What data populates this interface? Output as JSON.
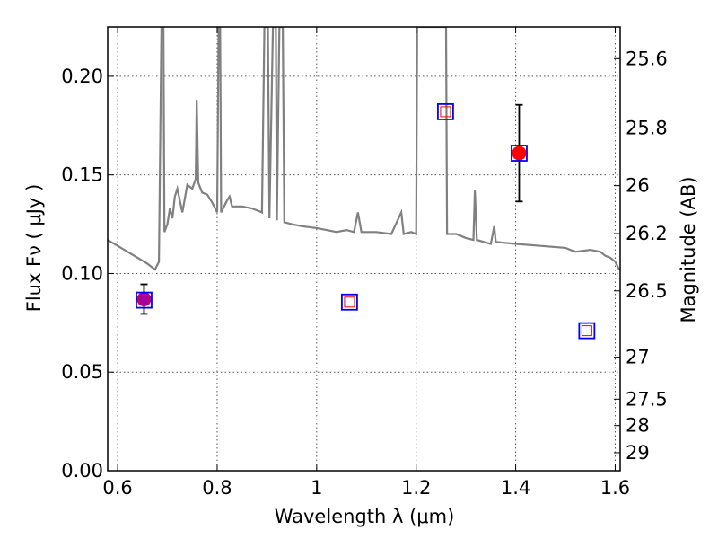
{
  "chart_data": {
    "type": "scatter",
    "xlabel": "Wavelength  λ (μm)",
    "ylabel_left": "Flux  Fν  ( μJy )",
    "ylabel_right": "Magnitude (AB)",
    "xlim": [
      0.58,
      1.61
    ],
    "ylim": [
      0.0,
      0.225
    ],
    "grid": true,
    "grid_style": "dotted",
    "x_ticks": [
      {
        "value": 0.6,
        "label": "0.6"
      },
      {
        "value": 0.8,
        "label": "0.8"
      },
      {
        "value": 1.0,
        "label": "1"
      },
      {
        "value": 1.2,
        "label": "1.2"
      },
      {
        "value": 1.4,
        "label": "1.4"
      },
      {
        "value": 1.6,
        "label": "1.6"
      }
    ],
    "y_ticks": [
      {
        "value": 0.0,
        "label": "0.00"
      },
      {
        "value": 0.05,
        "label": "0.05"
      },
      {
        "value": 0.1,
        "label": "0.10"
      },
      {
        "value": 0.15,
        "label": "0.15"
      },
      {
        "value": 0.2,
        "label": "0.20"
      }
    ],
    "right_ticks": [
      {
        "value": 25.6,
        "label": "25.6"
      },
      {
        "value": 25.8,
        "label": "25.8"
      },
      {
        "value": 26.0,
        "label": "26"
      },
      {
        "value": 26.2,
        "label": "26.2"
      },
      {
        "value": 26.5,
        "label": "26.5"
      },
      {
        "value": 27.0,
        "label": "27"
      },
      {
        "value": 27.5,
        "label": "27.5"
      },
      {
        "value": 28.0,
        "label": "28"
      },
      {
        "value": 29.0,
        "label": "29"
      }
    ],
    "colors": {
      "axis": "#000000",
      "grid": "#555555",
      "spectrum": "#808080",
      "model_square": "#0000ff",
      "model_square_inner": "#ff0000",
      "observed_purple": "#a000a0",
      "observed_red": "#ff0000",
      "errorbar": "#000000"
    },
    "spectrum": [
      [
        0.58,
        0.117
      ],
      [
        0.6,
        0.114
      ],
      [
        0.62,
        0.111
      ],
      [
        0.64,
        0.108
      ],
      [
        0.66,
        0.105
      ],
      [
        0.675,
        0.102
      ],
      [
        0.683,
        0.106
      ],
      [
        0.688,
        0.225
      ],
      [
        0.692,
        0.225
      ],
      [
        0.694,
        0.121
      ],
      [
        0.7,
        0.125
      ],
      [
        0.705,
        0.133
      ],
      [
        0.71,
        0.128
      ],
      [
        0.715,
        0.139
      ],
      [
        0.72,
        0.143
      ],
      [
        0.73,
        0.131
      ],
      [
        0.74,
        0.145
      ],
      [
        0.75,
        0.143
      ],
      [
        0.757,
        0.148
      ],
      [
        0.759,
        0.188
      ],
      [
        0.762,
        0.146
      ],
      [
        0.77,
        0.141
      ],
      [
        0.78,
        0.14
      ],
      [
        0.79,
        0.136
      ],
      [
        0.8,
        0.131
      ],
      [
        0.803,
        0.225
      ],
      [
        0.806,
        0.225
      ],
      [
        0.808,
        0.131
      ],
      [
        0.82,
        0.137
      ],
      [
        0.825,
        0.139
      ],
      [
        0.83,
        0.134
      ],
      [
        0.85,
        0.134
      ],
      [
        0.87,
        0.133
      ],
      [
        0.89,
        0.131
      ],
      [
        0.895,
        0.225
      ],
      [
        0.902,
        0.225
      ],
      [
        0.905,
        0.128
      ],
      [
        0.912,
        0.225
      ],
      [
        0.918,
        0.225
      ],
      [
        0.92,
        0.127
      ],
      [
        0.925,
        0.225
      ],
      [
        0.932,
        0.225
      ],
      [
        0.935,
        0.126
      ],
      [
        0.95,
        0.125
      ],
      [
        0.97,
        0.124
      ],
      [
        1.0,
        0.123
      ],
      [
        1.02,
        0.122
      ],
      [
        1.04,
        0.121
      ],
      [
        1.06,
        0.122
      ],
      [
        1.075,
        0.121
      ],
      [
        1.083,
        0.131
      ],
      [
        1.09,
        0.121
      ],
      [
        1.12,
        0.121
      ],
      [
        1.15,
        0.12
      ],
      [
        1.17,
        0.131
      ],
      [
        1.175,
        0.12
      ],
      [
        1.19,
        0.121
      ],
      [
        1.2,
        0.12
      ],
      [
        1.202,
        0.225
      ],
      [
        1.25,
        0.225
      ],
      [
        1.26,
        0.225
      ],
      [
        1.262,
        0.12
      ],
      [
        1.28,
        0.12
      ],
      [
        1.3,
        0.118
      ],
      [
        1.315,
        0.117
      ],
      [
        1.318,
        0.142
      ],
      [
        1.322,
        0.117
      ],
      [
        1.35,
        0.115
      ],
      [
        1.357,
        0.124
      ],
      [
        1.36,
        0.116
      ],
      [
        1.4,
        0.115
      ],
      [
        1.45,
        0.114
      ],
      [
        1.5,
        0.113
      ],
      [
        1.52,
        0.111
      ],
      [
        1.55,
        0.112
      ],
      [
        1.57,
        0.111
      ],
      [
        1.58,
        0.109
      ],
      [
        1.59,
        0.108
      ],
      [
        1.6,
        0.106
      ],
      [
        1.608,
        0.102
      ]
    ],
    "model_points": [
      {
        "x": 0.653,
        "y": 0.0865
      },
      {
        "x": 1.066,
        "y": 0.0855
      },
      {
        "x": 1.259,
        "y": 0.182
      },
      {
        "x": 1.407,
        "y": 0.161
      },
      {
        "x": 1.543,
        "y": 0.071
      }
    ],
    "observed_points": [
      {
        "x": 0.653,
        "y": 0.087,
        "yerr": 0.0075,
        "color": "purple"
      },
      {
        "x": 1.407,
        "y": 0.161,
        "yerr": 0.0245,
        "color": "red"
      }
    ]
  }
}
